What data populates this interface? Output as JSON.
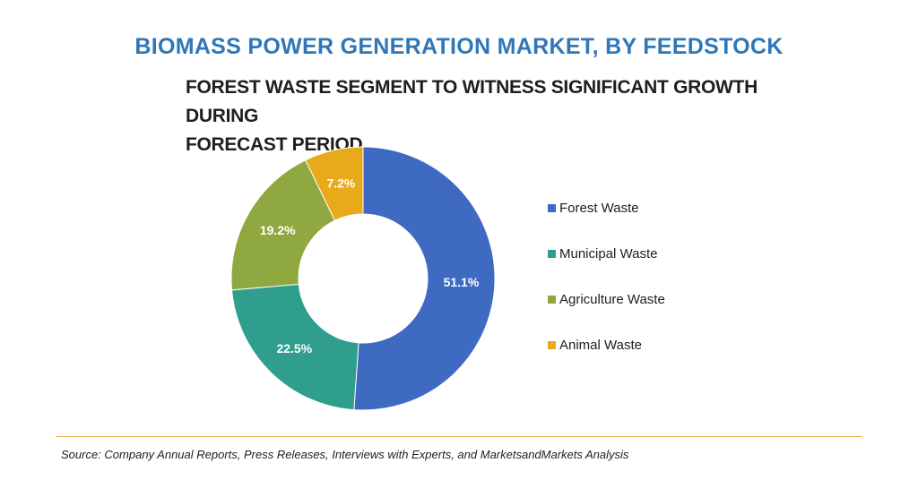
{
  "header": {
    "title": "BIOMASS POWER GENERATION MARKET, BY FEEDSTOCK",
    "subtitle_line1": "FOREST WASTE SEGMENT TO WITNESS SIGNIFICANT GROWTH DURING",
    "subtitle_line2": "FORECAST PERIOD"
  },
  "chart_data": {
    "type": "pie",
    "variant": "donut",
    "title": "BIOMASS POWER GENERATION MARKET, BY FEEDSTOCK",
    "subtitle": "FOREST WASTE SEGMENT TO WITNESS SIGNIFICANT GROWTH DURING FORECAST PERIOD",
    "categories": [
      "Forest Waste",
      "Municipal Waste",
      "Agriculture Waste",
      "Animal Waste"
    ],
    "values": [
      51.1,
      22.5,
      19.2,
      7.2
    ],
    "labels": [
      "51.1%",
      "22.5%",
      "19.2%",
      "7.2%"
    ],
    "colors": [
      "#3f6ac2",
      "#2f9e8c",
      "#8fa83f",
      "#e8a91b"
    ],
    "legend_position": "right"
  },
  "footer": {
    "source": "Source: Company Annual Reports, Press Releases, Interviews with Experts, and MarketsandMarkets Analysis"
  }
}
